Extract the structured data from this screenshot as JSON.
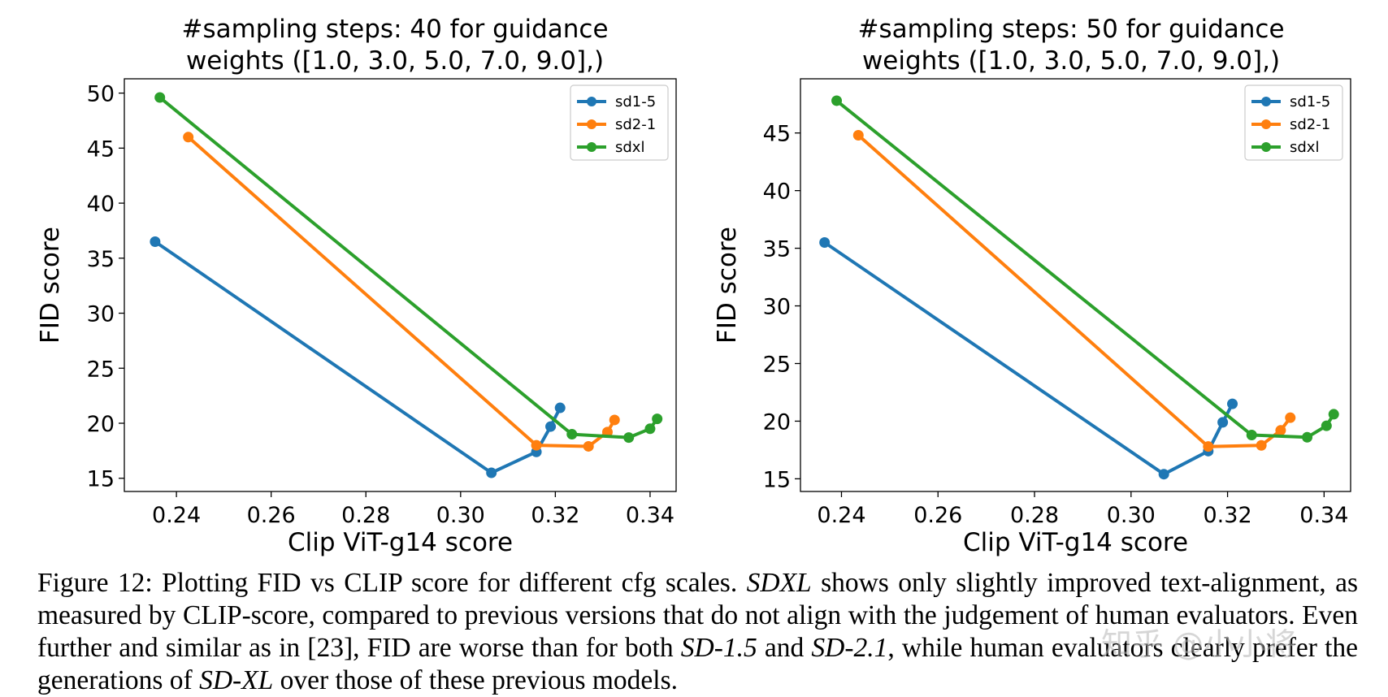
{
  "chart_data": [
    {
      "type": "line",
      "title": [
        "#sampling steps: 40 for guidance",
        "weights ([1.0, 3.0, 5.0, 7.0, 9.0],)"
      ],
      "xlabel": "Clip ViT-g14 score",
      "ylabel": "FID score",
      "xlim": [
        0.229,
        0.3455
      ],
      "ylim": [
        13.8,
        51.3
      ],
      "xticks": [
        "0.24",
        "0.26",
        "0.28",
        "0.30",
        "0.32",
        "0.34"
      ],
      "yticks": [
        "15",
        "20",
        "25",
        "30",
        "35",
        "40",
        "45",
        "50"
      ],
      "grid": false,
      "legend": "top-right",
      "series": [
        {
          "name": "sd1-5",
          "color": "#1f77b4",
          "x": [
            0.2355,
            0.3065,
            0.316,
            0.319,
            0.321
          ],
          "y": [
            36.5,
            15.5,
            17.4,
            19.7,
            21.4
          ]
        },
        {
          "name": "sd2-1",
          "color": "#ff7f0e",
          "x": [
            0.2425,
            0.316,
            0.327,
            0.331,
            0.3325
          ],
          "y": [
            46.0,
            18.0,
            17.9,
            19.2,
            20.3
          ]
        },
        {
          "name": "sdxl",
          "color": "#2ca02c",
          "x": [
            0.2365,
            0.3235,
            0.3355,
            0.34,
            0.3415
          ],
          "y": [
            49.6,
            19.0,
            18.7,
            19.5,
            20.4
          ]
        }
      ]
    },
    {
      "type": "line",
      "title": [
        "#sampling steps: 50 for guidance",
        "weights ([1.0, 3.0, 5.0, 7.0, 9.0],)"
      ],
      "xlabel": "Clip ViT-g14 score",
      "ylabel": "FID score",
      "xlim": [
        0.2315,
        0.3455
      ],
      "ylim": [
        13.9,
        49.7
      ],
      "xticks": [
        "0.24",
        "0.26",
        "0.28",
        "0.30",
        "0.32",
        "0.34"
      ],
      "yticks": [
        "15",
        "20",
        "25",
        "30",
        "35",
        "40",
        "45"
      ],
      "grid": false,
      "legend": "top-right",
      "series": [
        {
          "name": "sd1-5",
          "color": "#1f77b4",
          "x": [
            0.2365,
            0.3068,
            0.316,
            0.319,
            0.321
          ],
          "y": [
            35.5,
            15.4,
            17.4,
            19.9,
            21.5
          ]
        },
        {
          "name": "sd2-1",
          "color": "#ff7f0e",
          "x": [
            0.2435,
            0.316,
            0.327,
            0.331,
            0.333
          ],
          "y": [
            44.8,
            17.8,
            17.9,
            19.2,
            20.3
          ]
        },
        {
          "name": "sdxl",
          "color": "#2ca02c",
          "x": [
            0.239,
            0.325,
            0.3365,
            0.3405,
            0.342
          ],
          "y": [
            47.8,
            18.8,
            18.6,
            19.6,
            20.6
          ]
        }
      ]
    }
  ],
  "caption": {
    "p1": "Figure 12:  Plotting FID vs CLIP score for different cfg scales. ",
    "p2": "SDXL",
    "p3": " shows only slightly improved text-alignment, as measured by CLIP-score, compared to previous versions that do not align with the judgement of human evaluators. Even further and similar as in [23], FID are worse than for both ",
    "p4": "SD-1.5",
    "p5": " and ",
    "p6": "SD-2.1",
    "p7": ", while human evaluators clearly prefer the generations of ",
    "p8": "SD-XL",
    "p9": " over those of these previous models."
  },
  "watermark": "知乎 @小小将"
}
